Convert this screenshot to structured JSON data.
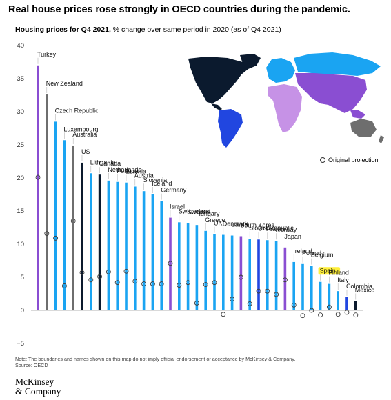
{
  "title": "Real house prices rose strongly in OECD countries during the pandemic.",
  "subtitle_bold": "Housing prices for Q4 2021,",
  "subtitle_rest": " % change over same period in 2020 (as of Q4 2021)",
  "note": "Note: The boundaries and names shown on this map do not imply official endorsement or acceptance by McKinsey & Company.",
  "source": "Source: OECD",
  "logo_line1": "McKinsey",
  "logo_line2": "& Company",
  "legend_label": "Original projection",
  "highlight_color": "#ffef3a",
  "colors": {
    "americas_north": "#0b1a2e",
    "americas_south": "#2146e0",
    "europe": "#1aa4f2",
    "africa": "#c692e6",
    "asia": "#8a4ed2",
    "oceania": "#6e6e6e"
  },
  "chart_data": {
    "type": "bar",
    "ylim": [
      -5,
      40
    ],
    "yticks": [
      -5,
      0,
      5,
      10,
      15,
      20,
      25,
      30,
      35,
      40
    ],
    "categories": [
      "Turkey",
      "New Zealand",
      "Czech Republic",
      "Luxembourg",
      "Australia",
      "US",
      "Lithuania",
      "Canada",
      "Netherlands",
      "Portugal",
      "Estonia",
      "Austria",
      "Slovenia",
      "Iceland",
      "Germany",
      "Israel",
      "Switzerland",
      "Sweden",
      "Hungary",
      "Greece",
      "UK",
      "Denmark",
      "Latvia",
      "South Korea",
      "Slovak Republic",
      "Chile",
      "France",
      "Norway",
      "Japan",
      "Ireland",
      "Poland",
      "Belgium",
      "Spain",
      "Finland",
      "Italy",
      "Colombia",
      "Mexico"
    ],
    "values": [
      37.0,
      32.6,
      28.5,
      25.7,
      24.9,
      22.3,
      20.7,
      20.5,
      19.6,
      19.4,
      19.3,
      18.7,
      18.0,
      17.5,
      16.5,
      14.0,
      13.3,
      13.2,
      12.9,
      12.0,
      11.5,
      11.4,
      11.3,
      11.2,
      10.8,
      10.7,
      10.6,
      10.5,
      9.5,
      7.3,
      7.0,
      6.7,
      4.3,
      4.0,
      2.9,
      2.0,
      1.4
    ],
    "original_projection": [
      20.1,
      11.6,
      10.9,
      3.7,
      13.5,
      5.7,
      4.6,
      5.1,
      5.8,
      4.2,
      5.9,
      4.4,
      4.0,
      4.0,
      4.0,
      7.1,
      3.8,
      4.2,
      1.1,
      3.9,
      4.2,
      -0.6,
      1.7,
      5.0,
      1.0,
      2.9,
      2.9,
      2.4,
      4.6,
      0.8,
      -0.8,
      0.0,
      -0.7,
      0.5,
      -0.6,
      -0.3,
      -0.7
    ],
    "bar_colors": [
      "#8a4ed2",
      "#6e6e6e",
      "#1aa4f2",
      "#1aa4f2",
      "#6e6e6e",
      "#0b1a2e",
      "#1aa4f2",
      "#0b1a2e",
      "#1aa4f2",
      "#1aa4f2",
      "#1aa4f2",
      "#1aa4f2",
      "#1aa4f2",
      "#1aa4f2",
      "#1aa4f2",
      "#8a4ed2",
      "#1aa4f2",
      "#1aa4f2",
      "#1aa4f2",
      "#1aa4f2",
      "#1aa4f2",
      "#1aa4f2",
      "#1aa4f2",
      "#8a4ed2",
      "#1aa4f2",
      "#2146e0",
      "#1aa4f2",
      "#1aa4f2",
      "#8a4ed2",
      "#1aa4f2",
      "#1aa4f2",
      "#1aa4f2",
      "#1aa4f2",
      "#1aa4f2",
      "#1aa4f2",
      "#2146e0",
      "#0b1a2e"
    ],
    "highlighted": "Spain",
    "grid": false,
    "legend_position": "right"
  }
}
